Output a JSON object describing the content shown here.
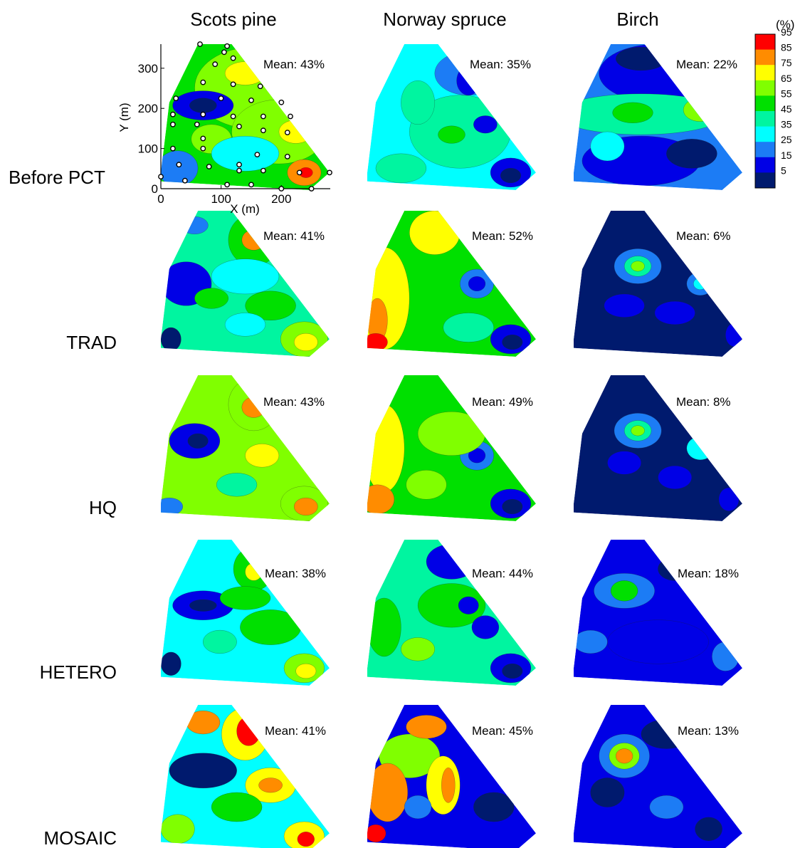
{
  "chart_data": {
    "type": "heatmap",
    "columns": [
      "Scots pine",
      "Norway spruce",
      "Birch"
    ],
    "rows": [
      "Before PCT",
      "TRAD",
      "HQ",
      "HETERO",
      "MOSAIC"
    ],
    "mean_labels": [
      [
        "Mean: 43%",
        "Mean: 35%",
        "Mean: 22%"
      ],
      [
        "Mean: 41%",
        "Mean: 52%",
        "Mean:  6%"
      ],
      [
        "Mean: 43%",
        "Mean: 49%",
        "Mean:  8%"
      ],
      [
        "Mean: 38%",
        "Mean: 44%",
        "Mean: 18%"
      ],
      [
        "Mean: 41%",
        "Mean: 45%",
        "Mean: 13%"
      ]
    ],
    "means": [
      [
        43,
        35,
        22
      ],
      [
        41,
        52,
        6
      ],
      [
        43,
        49,
        8
      ],
      [
        38,
        44,
        18
      ],
      [
        41,
        45,
        13
      ]
    ],
    "colorbar": {
      "unit": "(%)",
      "ticks": [
        5,
        15,
        25,
        35,
        45,
        55,
        65,
        75,
        85,
        95
      ],
      "colors": [
        "#001a6e",
        "#0000e6",
        "#1c7cf5",
        "#00ffff",
        "#00f5a0",
        "#00e000",
        "#80ff00",
        "#ffff00",
        "#ff8c00",
        "#ff0000"
      ]
    },
    "xlabel": "X (m)",
    "ylabel": "Y (m)",
    "xticks": [
      0,
      100,
      200
    ],
    "yticks": [
      0,
      100,
      200,
      300
    ],
    "xlim": [
      0,
      280
    ],
    "ylim": [
      0,
      360
    ],
    "sample_points": [
      [
        65,
        360
      ],
      [
        110,
        355
      ],
      [
        105,
        340
      ],
      [
        90,
        310
      ],
      [
        120,
        325
      ],
      [
        70,
        265
      ],
      [
        120,
        260
      ],
      [
        165,
        255
      ],
      [
        25,
        225
      ],
      [
        100,
        225
      ],
      [
        150,
        220
      ],
      [
        200,
        215
      ],
      [
        20,
        185
      ],
      [
        70,
        185
      ],
      [
        120,
        180
      ],
      [
        170,
        180
      ],
      [
        215,
        180
      ],
      [
        20,
        160
      ],
      [
        60,
        160
      ],
      [
        130,
        155
      ],
      [
        170,
        145
      ],
      [
        210,
        140
      ],
      [
        70,
        125
      ],
      [
        20,
        100
      ],
      [
        70,
        100
      ],
      [
        160,
        85
      ],
      [
        210,
        80
      ],
      [
        30,
        60
      ],
      [
        80,
        55
      ],
      [
        130,
        60
      ],
      [
        170,
        45
      ],
      [
        130,
        45
      ],
      [
        230,
        40
      ],
      [
        280,
        40
      ],
      [
        0,
        30
      ],
      [
        40,
        20
      ],
      [
        110,
        10
      ],
      [
        150,
        10
      ],
      [
        200,
        0
      ],
      [
        250,
        0
      ]
    ]
  }
}
